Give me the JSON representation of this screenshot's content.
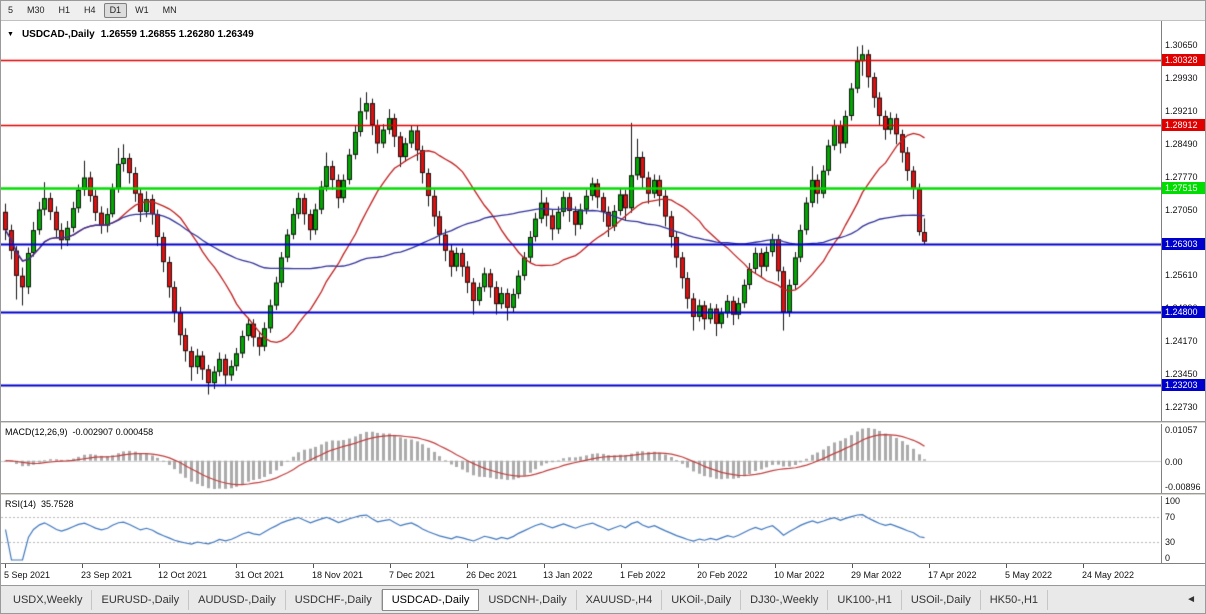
{
  "toolbar": {
    "periods": [
      {
        "label": "5",
        "active": false
      },
      {
        "label": "M30",
        "active": false
      },
      {
        "label": "H1",
        "active": false
      },
      {
        "label": "H4",
        "active": false
      },
      {
        "label": "D1",
        "active": true
      },
      {
        "label": "W1",
        "active": false
      },
      {
        "label": "MN",
        "active": false
      }
    ]
  },
  "chart": {
    "collapse_icon": "▼",
    "title_symbol": "USDCAD-,Daily",
    "title_ohlc": "1.26559 1.26855 1.26280 1.26349"
  },
  "chart_data": {
    "type": "candlestick",
    "symbol": "USDCAD",
    "timeframe": "Daily",
    "current_ohlc": {
      "open": 1.26559,
      "high": 1.26855,
      "low": 1.2628,
      "close": 1.26349
    },
    "price_range": [
      1.2242,
      1.3118
    ],
    "up_color": "#00A800",
    "down_color": "#E01010",
    "wick_color": "#151515",
    "y_axis_labels": [
      "1.30650",
      "1.29930",
      "1.29210",
      "1.28490",
      "1.27770",
      "1.27050",
      "1.26330",
      "1.25610",
      "1.24890",
      "1.24170",
      "1.23450",
      "1.22730"
    ],
    "x_axis_dates": [
      "5 Sep 2021",
      "23 Sep 2021",
      "12 Oct 2021",
      "31 Oct 2021",
      "18 Nov 2021",
      "7 Dec 2021",
      "26 Dec 2021",
      "13 Jan 2022",
      "1 Feb 2022",
      "20 Feb 2022",
      "10 Mar 2022",
      "29 Mar 2022",
      "17 Apr 2022",
      "5 May 2022",
      "24 May 2022"
    ],
    "horizontal_lines": [
      {
        "price": 1.30328,
        "label": "1.30328",
        "color": "#E00000",
        "width": 1.5
      },
      {
        "price": 1.28912,
        "label": "1.28912",
        "color": "#E00000",
        "width": 1.5
      },
      {
        "price": 1.27515,
        "label": "1.27515",
        "color": "#00DD00",
        "width": 2.5
      },
      {
        "price": 1.26303,
        "label": "1.26303",
        "color": "#0000CC",
        "width": 2
      },
      {
        "price": 1.248,
        "label": "1.24800",
        "color": "#0000CC",
        "width": 2
      },
      {
        "price": 1.23203,
        "label": "1.23203",
        "color": "#0000CC",
        "width": 2
      }
    ],
    "moving_averages": [
      {
        "period": 20,
        "color": "#C02020"
      },
      {
        "period": 45,
        "color": "#333399"
      }
    ],
    "macd": {
      "label": "MACD(12,26,9)",
      "values_text": "-0.002907 0.000458",
      "params": [
        12,
        26,
        9
      ],
      "scale_labels": [
        "0.01057",
        "0.00",
        "-0.00896"
      ],
      "histogram_color": "#ABABAB",
      "signal_color": "#C04040"
    },
    "rsi": {
      "label": "RSI(14)",
      "value_text": "35.7528",
      "period": 14,
      "levels": [
        70,
        30
      ],
      "scale_labels": [
        "100",
        "70",
        "30",
        "0"
      ],
      "line_color": "#4178BE"
    },
    "candles": [
      [
        1.27,
        1.2718,
        1.2638,
        1.266
      ],
      [
        1.266,
        1.2672,
        1.2596,
        1.2615
      ],
      [
        1.2615,
        1.2625,
        1.2508,
        1.256
      ],
      [
        1.256,
        1.2578,
        1.2495,
        1.2535
      ],
      [
        1.2535,
        1.2622,
        1.252,
        1.261
      ],
      [
        1.261,
        1.2678,
        1.2602,
        1.266
      ],
      [
        1.266,
        1.2722,
        1.265,
        1.2705
      ],
      [
        1.2705,
        1.2765,
        1.2692,
        1.273
      ],
      [
        1.273,
        1.2742,
        1.2682,
        1.27
      ],
      [
        1.27,
        1.2712,
        1.2645,
        1.266
      ],
      [
        1.266,
        1.2675,
        1.2618,
        1.2638
      ],
      [
        1.2638,
        1.268,
        1.2625,
        1.2665
      ],
      [
        1.2665,
        1.2722,
        1.2655,
        1.2708
      ],
      [
        1.2708,
        1.276,
        1.2698,
        1.2748
      ],
      [
        1.2748,
        1.2812,
        1.2735,
        1.2775
      ],
      [
        1.2775,
        1.2788,
        1.2722,
        1.2735
      ],
      [
        1.2735,
        1.2748,
        1.268,
        1.2698
      ],
      [
        1.2698,
        1.2712,
        1.2652,
        1.267
      ],
      [
        1.267,
        1.2708,
        1.2655,
        1.2695
      ],
      [
        1.2695,
        1.2762,
        1.2688,
        1.275
      ],
      [
        1.275,
        1.284,
        1.2742,
        1.2805
      ],
      [
        1.2805,
        1.2848,
        1.2788,
        1.2818
      ],
      [
        1.2818,
        1.2828,
        1.2762,
        1.2785
      ],
      [
        1.2785,
        1.2798,
        1.2722,
        1.274
      ],
      [
        1.274,
        1.2752,
        1.2678,
        1.27
      ],
      [
        1.27,
        1.2745,
        1.2688,
        1.2728
      ],
      [
        1.2728,
        1.2738,
        1.2672,
        1.2695
      ],
      [
        1.2695,
        1.2705,
        1.2625,
        1.2645
      ],
      [
        1.2645,
        1.2655,
        1.2568,
        1.259
      ],
      [
        1.259,
        1.2602,
        1.2512,
        1.2535
      ],
      [
        1.2535,
        1.2548,
        1.2458,
        1.248
      ],
      [
        1.248,
        1.2492,
        1.2408,
        1.243
      ],
      [
        1.243,
        1.2445,
        1.2372,
        1.2395
      ],
      [
        1.2395,
        1.2405,
        1.233,
        1.236
      ],
      [
        1.236,
        1.24,
        1.2345,
        1.2385
      ],
      [
        1.2385,
        1.2395,
        1.2332,
        1.2355
      ],
      [
        1.2355,
        1.2365,
        1.23,
        1.2325
      ],
      [
        1.2325,
        1.2362,
        1.2312,
        1.235
      ],
      [
        1.235,
        1.2392,
        1.234,
        1.2378
      ],
      [
        1.2378,
        1.2388,
        1.2322,
        1.2342
      ],
      [
        1.2342,
        1.2375,
        1.233,
        1.2362
      ],
      [
        1.2362,
        1.2402,
        1.2352,
        1.239
      ],
      [
        1.239,
        1.244,
        1.238,
        1.2428
      ],
      [
        1.2428,
        1.2468,
        1.2418,
        1.2455
      ],
      [
        1.2455,
        1.2465,
        1.2405,
        1.2425
      ],
      [
        1.2425,
        1.2438,
        1.2385,
        1.2405
      ],
      [
        1.2405,
        1.2458,
        1.2395,
        1.2445
      ],
      [
        1.2445,
        1.2508,
        1.2435,
        1.2495
      ],
      [
        1.2495,
        1.2558,
        1.2485,
        1.2545
      ],
      [
        1.2545,
        1.2612,
        1.2535,
        1.26
      ],
      [
        1.26,
        1.2662,
        1.259,
        1.265
      ],
      [
        1.265,
        1.2708,
        1.264,
        1.2695
      ],
      [
        1.2695,
        1.2742,
        1.2685,
        1.273
      ],
      [
        1.273,
        1.274,
        1.2672,
        1.2695
      ],
      [
        1.2695,
        1.2705,
        1.2638,
        1.266
      ],
      [
        1.266,
        1.2718,
        1.265,
        1.2705
      ],
      [
        1.2705,
        1.2768,
        1.2695,
        1.2755
      ],
      [
        1.2755,
        1.283,
        1.2745,
        1.28
      ],
      [
        1.28,
        1.2812,
        1.2748,
        1.277
      ],
      [
        1.277,
        1.2782,
        1.2708,
        1.273
      ],
      [
        1.273,
        1.2782,
        1.272,
        1.277
      ],
      [
        1.277,
        1.2838,
        1.276,
        1.2825
      ],
      [
        1.2825,
        1.2888,
        1.2815,
        1.2875
      ],
      [
        1.2875,
        1.295,
        1.2865,
        1.292
      ],
      [
        1.292,
        1.2962,
        1.2902,
        1.2938
      ],
      [
        1.2938,
        1.2948,
        1.2868,
        1.289
      ],
      [
        1.289,
        1.2902,
        1.2828,
        1.285
      ],
      [
        1.285,
        1.2892,
        1.284,
        1.288
      ],
      [
        1.288,
        1.2925,
        1.287,
        1.2905
      ],
      [
        1.2905,
        1.2915,
        1.2842,
        1.2865
      ],
      [
        1.2865,
        1.2875,
        1.2798,
        1.282
      ],
      [
        1.282,
        1.2862,
        1.281,
        1.285
      ],
      [
        1.285,
        1.289,
        1.284,
        1.2878
      ],
      [
        1.2878,
        1.2888,
        1.2812,
        1.2835
      ],
      [
        1.2835,
        1.2845,
        1.2762,
        1.2785
      ],
      [
        1.2785,
        1.2795,
        1.2712,
        1.2735
      ],
      [
        1.2735,
        1.2748,
        1.2668,
        1.269
      ],
      [
        1.269,
        1.2702,
        1.2628,
        1.265
      ],
      [
        1.265,
        1.2662,
        1.2592,
        1.2615
      ],
      [
        1.2615,
        1.2628,
        1.2558,
        1.258
      ],
      [
        1.258,
        1.2622,
        1.257,
        1.261
      ],
      [
        1.261,
        1.262,
        1.2558,
        1.258
      ],
      [
        1.258,
        1.2592,
        1.2522,
        1.2545
      ],
      [
        1.2545,
        1.2555,
        1.2475,
        1.2505
      ],
      [
        1.2505,
        1.2545,
        1.2495,
        1.2535
      ],
      [
        1.2535,
        1.2578,
        1.2525,
        1.2565
      ],
      [
        1.2565,
        1.2575,
        1.2512,
        1.2535
      ],
      [
        1.2535,
        1.2548,
        1.2475,
        1.2498
      ],
      [
        1.2498,
        1.2535,
        1.2488,
        1.2522
      ],
      [
        1.2522,
        1.2532,
        1.2462,
        1.249
      ],
      [
        1.249,
        1.2532,
        1.248,
        1.252
      ],
      [
        1.252,
        1.2572,
        1.251,
        1.256
      ],
      [
        1.256,
        1.2612,
        1.255,
        1.26
      ],
      [
        1.26,
        1.2658,
        1.259,
        1.2645
      ],
      [
        1.2645,
        1.2698,
        1.2635,
        1.2685
      ],
      [
        1.2685,
        1.2748,
        1.2675,
        1.272
      ],
      [
        1.272,
        1.2732,
        1.2668,
        1.2692
      ],
      [
        1.2692,
        1.2705,
        1.2638,
        1.2662
      ],
      [
        1.2662,
        1.2712,
        1.2652,
        1.27
      ],
      [
        1.27,
        1.2745,
        1.269,
        1.2732
      ],
      [
        1.2732,
        1.2742,
        1.2678,
        1.2702
      ],
      [
        1.2702,
        1.2712,
        1.2648,
        1.2672
      ],
      [
        1.2672,
        1.2718,
        1.2662,
        1.2705
      ],
      [
        1.2705,
        1.2748,
        1.2695,
        1.2735
      ],
      [
        1.2735,
        1.2775,
        1.2725,
        1.2762
      ],
      [
        1.2762,
        1.2772,
        1.2708,
        1.2732
      ],
      [
        1.2732,
        1.2742,
        1.2678,
        1.27
      ],
      [
        1.27,
        1.2712,
        1.2645,
        1.2668
      ],
      [
        1.2668,
        1.2715,
        1.2658,
        1.2702
      ],
      [
        1.2702,
        1.275,
        1.2692,
        1.2738
      ],
      [
        1.2738,
        1.2748,
        1.2682,
        1.2708
      ],
      [
        1.2708,
        1.2895,
        1.2698,
        1.278
      ],
      [
        1.278,
        1.286,
        1.277,
        1.282
      ],
      [
        1.282,
        1.2832,
        1.2752,
        1.2775
      ],
      [
        1.2775,
        1.2788,
        1.2718,
        1.274
      ],
      [
        1.274,
        1.2782,
        1.273,
        1.277
      ],
      [
        1.277,
        1.278,
        1.2712,
        1.2735
      ],
      [
        1.2735,
        1.2748,
        1.2668,
        1.269
      ],
      [
        1.269,
        1.2702,
        1.2622,
        1.2645
      ],
      [
        1.2645,
        1.2658,
        1.2578,
        1.26
      ],
      [
        1.26,
        1.2612,
        1.2532,
        1.2555
      ],
      [
        1.2555,
        1.2568,
        1.2488,
        1.251
      ],
      [
        1.251,
        1.2522,
        1.244,
        1.247
      ],
      [
        1.247,
        1.2508,
        1.246,
        1.2495
      ],
      [
        1.2495,
        1.2505,
        1.2442,
        1.2465
      ],
      [
        1.2465,
        1.25,
        1.2455,
        1.2488
      ],
      [
        1.2488,
        1.2498,
        1.2428,
        1.2455
      ],
      [
        1.2455,
        1.249,
        1.2445,
        1.2478
      ],
      [
        1.2478,
        1.2518,
        1.2468,
        1.2505
      ],
      [
        1.2505,
        1.2515,
        1.2452,
        1.2475
      ],
      [
        1.2475,
        1.2512,
        1.2465,
        1.25
      ],
      [
        1.25,
        1.2552,
        1.249,
        1.254
      ],
      [
        1.254,
        1.2588,
        1.253,
        1.2575
      ],
      [
        1.2575,
        1.2622,
        1.2565,
        1.261
      ],
      [
        1.261,
        1.262,
        1.2558,
        1.258
      ],
      [
        1.258,
        1.2624,
        1.257,
        1.2612
      ],
      [
        1.2612,
        1.2652,
        1.2602,
        1.264
      ],
      [
        1.264,
        1.265,
        1.2548,
        1.257
      ],
      [
        1.257,
        1.258,
        1.244,
        1.248
      ],
      [
        1.248,
        1.2552,
        1.247,
        1.254
      ],
      [
        1.254,
        1.2612,
        1.253,
        1.26
      ],
      [
        1.26,
        1.2672,
        1.259,
        1.266
      ],
      [
        1.266,
        1.2732,
        1.265,
        1.272
      ],
      [
        1.272,
        1.28,
        1.271,
        1.277
      ],
      [
        1.277,
        1.2782,
        1.2718,
        1.274
      ],
      [
        1.274,
        1.2802,
        1.273,
        1.279
      ],
      [
        1.279,
        1.2858,
        1.278,
        1.2845
      ],
      [
        1.2845,
        1.2902,
        1.2835,
        1.289
      ],
      [
        1.289,
        1.29,
        1.2828,
        1.285
      ],
      [
        1.285,
        1.2922,
        1.284,
        1.291
      ],
      [
        1.291,
        1.2982,
        1.29,
        1.297
      ],
      [
        1.297,
        1.3062,
        1.296,
        1.303
      ],
      [
        1.303,
        1.3065,
        1.2998,
        1.3045
      ],
      [
        1.3045,
        1.3055,
        1.2972,
        1.2995
      ],
      [
        1.2995,
        1.3005,
        1.2928,
        1.295
      ],
      [
        1.295,
        1.2962,
        1.2888,
        1.291
      ],
      [
        1.291,
        1.2922,
        1.2858,
        1.288
      ],
      [
        1.288,
        1.2918,
        1.287,
        1.2905
      ],
      [
        1.2905,
        1.2915,
        1.2848,
        1.287
      ],
      [
        1.287,
        1.288,
        1.2808,
        1.283
      ],
      [
        1.283,
        1.2842,
        1.2768,
        1.279
      ],
      [
        1.279,
        1.28,
        1.2728,
        1.275
      ],
      [
        1.275,
        1.2762,
        1.2648,
        1.26559
      ],
      [
        1.26559,
        1.26855,
        1.2628,
        1.26349
      ]
    ]
  },
  "tabbar": {
    "nav_arrow": "◄",
    "tabs": [
      {
        "label": "USDX,Weekly",
        "active": false
      },
      {
        "label": "EURUSD-,Daily",
        "active": false
      },
      {
        "label": "AUDUSD-,Daily",
        "active": false
      },
      {
        "label": "USDCHF-,Daily",
        "active": false
      },
      {
        "label": "USDCAD-,Daily",
        "active": true
      },
      {
        "label": "USDCNH-,Daily",
        "active": false
      },
      {
        "label": "XAUUSD-,H4",
        "active": false
      },
      {
        "label": "UKOil-,Daily",
        "active": false
      },
      {
        "label": "DJ30-,Weekly",
        "active": false
      },
      {
        "label": "UK100-,H1",
        "active": false
      },
      {
        "label": "USOil-,Daily",
        "active": false
      },
      {
        "label": "HK50-,H1",
        "active": false
      }
    ]
  }
}
